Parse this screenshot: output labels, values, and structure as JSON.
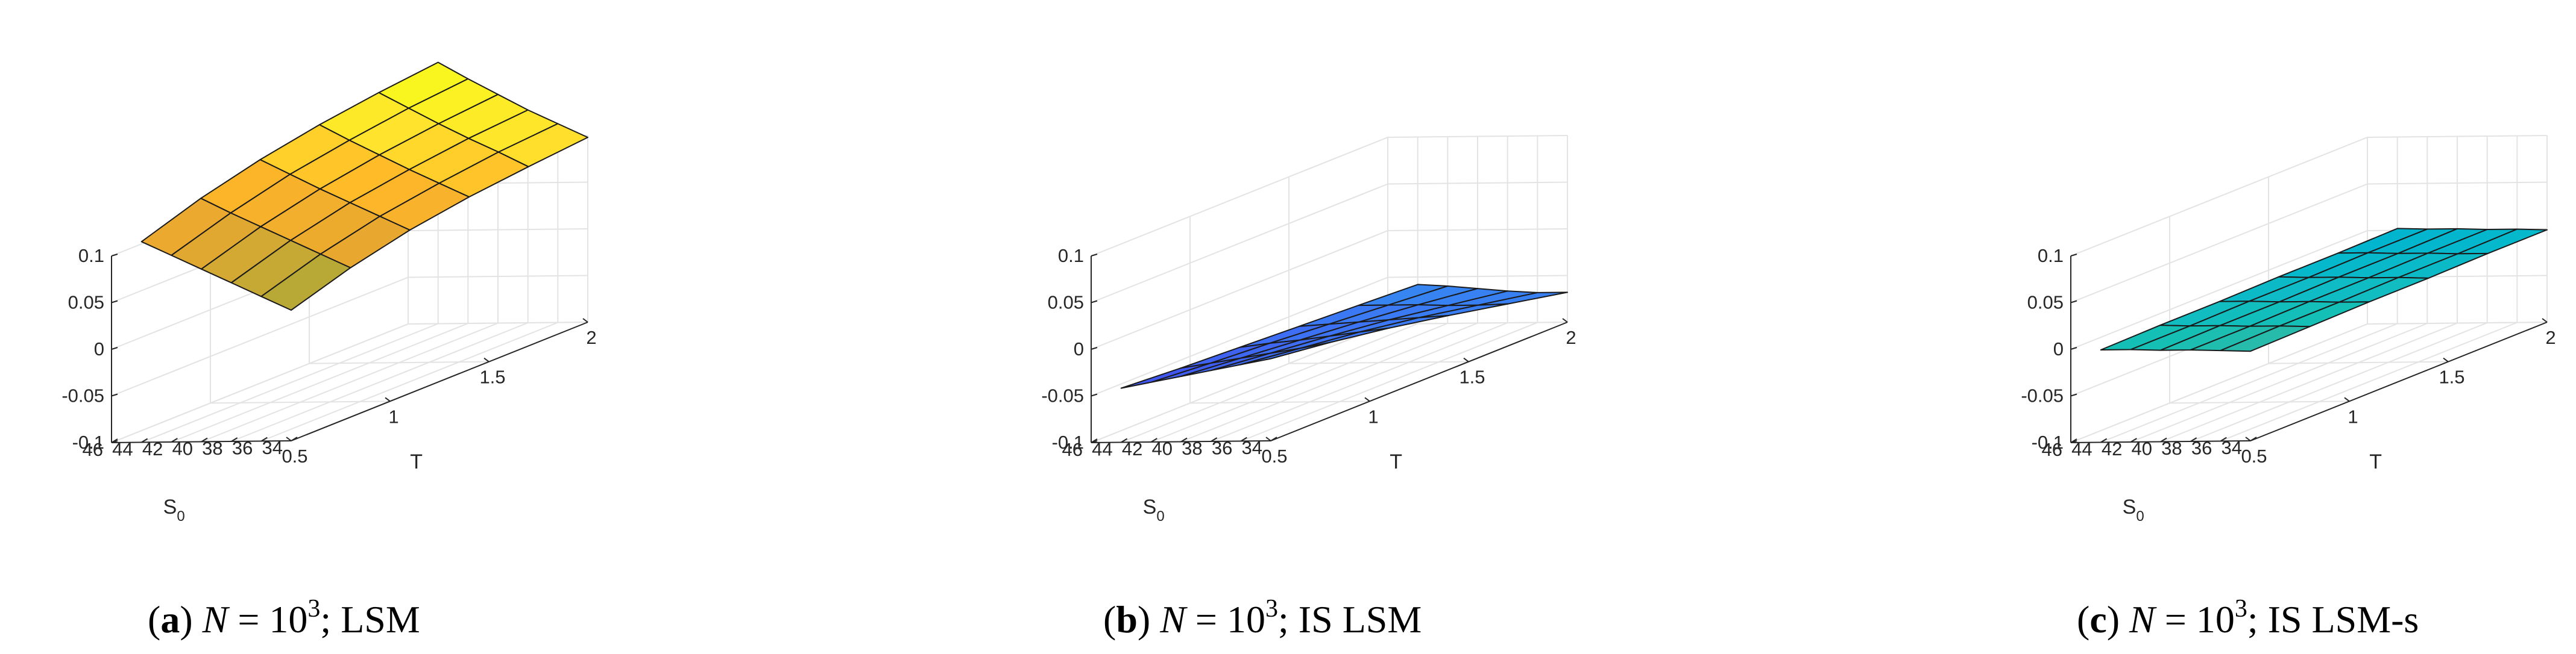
{
  "chart_data": [
    {
      "type": "surface",
      "caption": {
        "letter": "a",
        "n_symbol": "N",
        "base": "10",
        "exponent": "3",
        "method": "LSM"
      },
      "xlabel": "T",
      "ylabel": "S",
      "ylabel_subscript": "0",
      "x": [
        0.5,
        0.8,
        1.1,
        1.4,
        1.7,
        2.0
      ],
      "y": [
        34,
        36,
        38,
        40,
        42,
        44
      ],
      "z": [
        [
          0.04,
          0.06,
          0.075,
          0.085,
          0.092,
          0.098
        ],
        [
          0.055,
          0.075,
          0.09,
          0.1,
          0.108,
          0.113
        ],
        [
          0.07,
          0.09,
          0.105,
          0.115,
          0.123,
          0.128
        ],
        [
          0.085,
          0.105,
          0.12,
          0.131,
          0.139,
          0.145
        ],
        [
          0.1,
          0.12,
          0.136,
          0.147,
          0.156,
          0.162
        ],
        [
          0.115,
          0.136,
          0.152,
          0.164,
          0.173,
          0.18
        ]
      ],
      "colormap": [
        "#a8a838",
        "#e8a830",
        "#ffb628",
        "#ffe42c",
        "#f8fa1c"
      ],
      "xticks": [
        "0.5",
        "1",
        "1.5",
        "2"
      ],
      "xtick_values": [
        0.5,
        1,
        1.5,
        2
      ],
      "yticks": [
        "34",
        "36",
        "38",
        "40",
        "42",
        "44",
        "46"
      ],
      "ytick_values": [
        34,
        36,
        38,
        40,
        42,
        44,
        46
      ],
      "zticks": [
        "-0.1",
        "-0.05",
        "0",
        "0.05",
        "0.1"
      ],
      "ztick_values": [
        -0.1,
        -0.05,
        0,
        0.05,
        0.1
      ],
      "xlim": [
        0.5,
        2
      ],
      "ylim": [
        34,
        46
      ],
      "zlim": [
        -0.1,
        0.1
      ],
      "grid": true
    },
    {
      "type": "surface",
      "caption": {
        "letter": "b",
        "n_symbol": "N",
        "base": "10",
        "exponent": "3",
        "method": "IS LSM"
      },
      "xlabel": "T",
      "ylabel": "S",
      "ylabel_subscript": "0",
      "x": [
        0.5,
        0.8,
        1.1,
        1.4,
        1.7,
        2.0
      ],
      "y": [
        34,
        36,
        38,
        40,
        42,
        44
      ],
      "z": [
        [
          -0.012,
          -0.02,
          -0.03,
          -0.042,
          -0.055,
          -0.068
        ],
        [
          -0.018,
          -0.026,
          -0.034,
          -0.044,
          -0.056,
          -0.068
        ],
        [
          -0.024,
          -0.031,
          -0.038,
          -0.046,
          -0.056,
          -0.066
        ],
        [
          -0.03,
          -0.036,
          -0.042,
          -0.048,
          -0.055,
          -0.063
        ],
        [
          -0.036,
          -0.041,
          -0.045,
          -0.05,
          -0.055,
          -0.06
        ],
        [
          -0.042,
          -0.046,
          -0.049,
          -0.052,
          -0.055,
          -0.058
        ]
      ],
      "colormap": [
        "#3848e0",
        "#4058f0",
        "#3c78f4",
        "#2c98ec",
        "#20b0e0"
      ],
      "xticks": [
        "0.5",
        "1",
        "1.5",
        "2"
      ],
      "xtick_values": [
        0.5,
        1,
        1.5,
        2
      ],
      "yticks": [
        "34",
        "36",
        "38",
        "40",
        "42",
        "44",
        "46"
      ],
      "ytick_values": [
        34,
        36,
        38,
        40,
        42,
        44,
        46
      ],
      "zticks": [
        "-0.1",
        "-0.05",
        "0",
        "0.05",
        "0.1"
      ],
      "ztick_values": [
        -0.1,
        -0.05,
        0,
        0.05,
        0.1
      ],
      "xlim": [
        0.5,
        2
      ],
      "ylim": [
        34,
        46
      ],
      "zlim": [
        -0.1,
        0.1
      ],
      "grid": true
    },
    {
      "type": "surface",
      "caption": {
        "letter": "c",
        "n_symbol": "N",
        "base": "10",
        "exponent": "3",
        "method": "IS LSM-s"
      },
      "xlabel": "T",
      "ylabel": "S",
      "ylabel_subscript": "0",
      "x": [
        0.5,
        0.8,
        1.1,
        1.4,
        1.7,
        2.0
      ],
      "y": [
        34,
        36,
        38,
        40,
        42,
        44
      ],
      "z": [
        [
          -0.004,
          -0.003,
          -0.002,
          -0.002,
          -0.001,
          -0.001
        ],
        [
          -0.003,
          -0.002,
          -0.002,
          -0.001,
          -0.001,
          0.0
        ],
        [
          -0.002,
          -0.002,
          -0.001,
          -0.001,
          0.0,
          0.0
        ],
        [
          -0.002,
          -0.001,
          -0.001,
          0.0,
          0.0,
          0.001
        ],
        [
          -0.001,
          -0.001,
          0.0,
          0.0,
          0.001,
          0.001
        ],
        [
          -0.001,
          0.0,
          0.0,
          0.001,
          0.001,
          0.002
        ]
      ],
      "colormap": [
        "#30b8a8",
        "#14c0b4",
        "#10bcc4",
        "#06b8cc",
        "#00b4d0"
      ],
      "xticks": [
        "0.5",
        "1",
        "1.5",
        "2"
      ],
      "xtick_values": [
        0.5,
        1,
        1.5,
        2
      ],
      "yticks": [
        "34",
        "36",
        "38",
        "40",
        "42",
        "44",
        "46"
      ],
      "ytick_values": [
        34,
        36,
        38,
        40,
        42,
        44,
        46
      ],
      "zticks": [
        "-0.1",
        "-0.05",
        "0",
        "0.05",
        "0.1"
      ],
      "ztick_values": [
        -0.1,
        -0.05,
        0,
        0.05,
        0.1
      ],
      "xlim": [
        0.5,
        2
      ],
      "ylim": [
        34,
        46
      ],
      "zlim": [
        -0.1,
        0.1
      ],
      "grid": true
    }
  ]
}
